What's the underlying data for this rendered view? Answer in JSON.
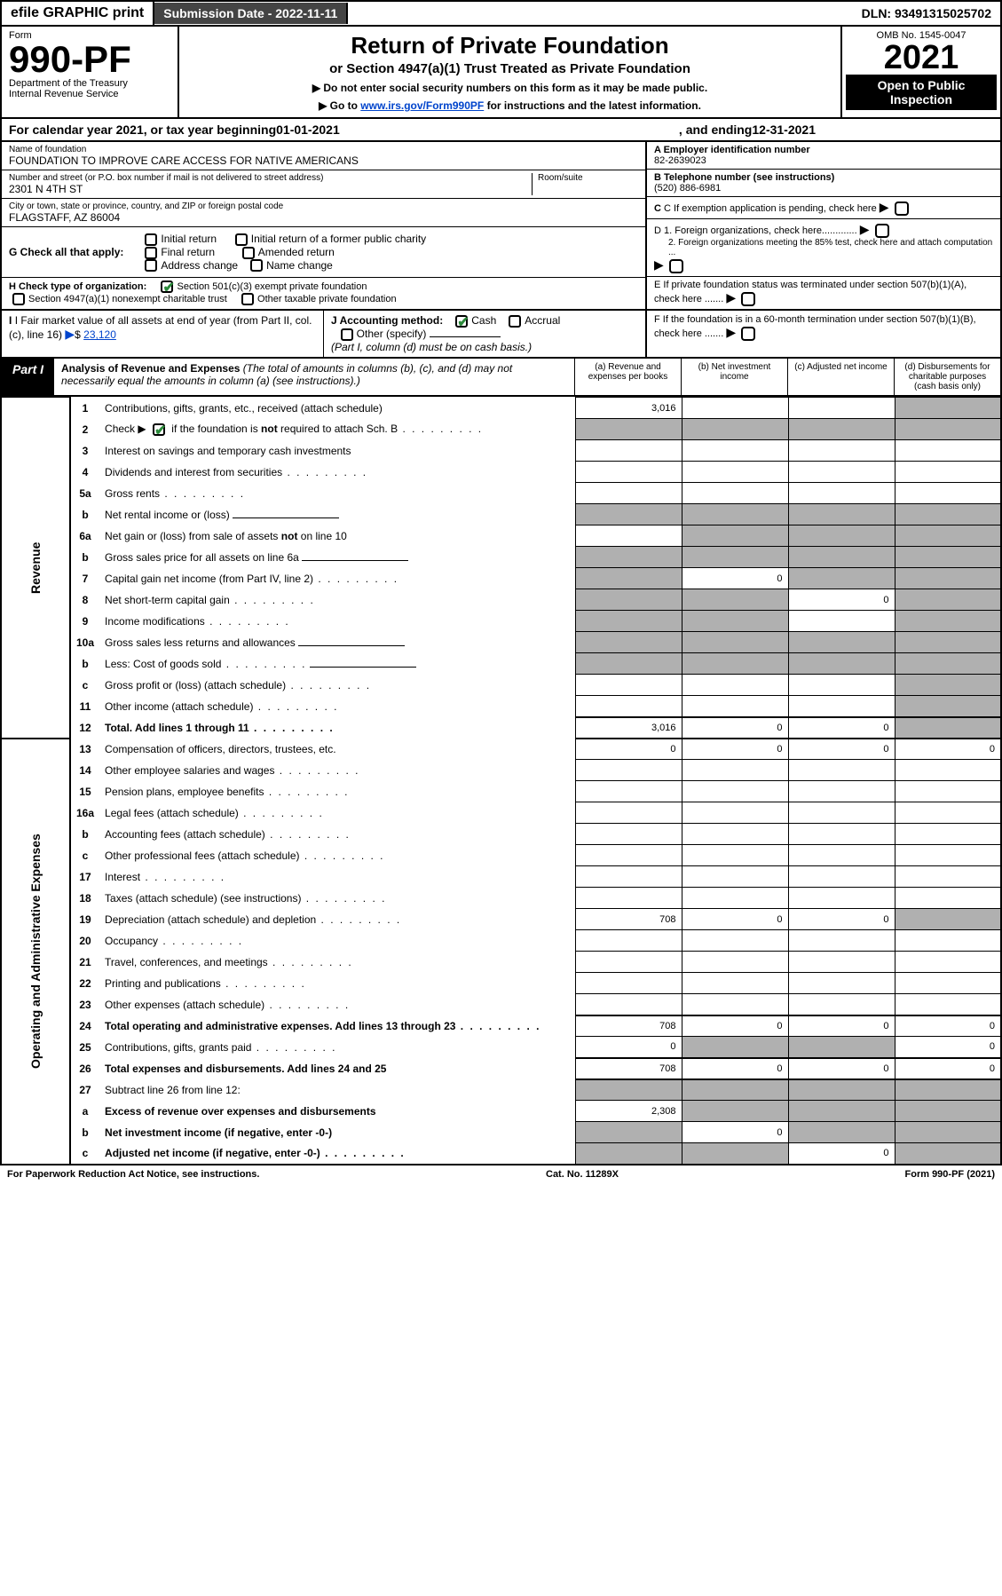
{
  "top": {
    "efile": "efile GRAPHIC print",
    "submission": "Submission Date - 2022-11-11",
    "dln": "DLN: 93491315025702"
  },
  "header": {
    "form_label": "Form",
    "form_number": "990-PF",
    "department": "Department of the Treasury",
    "irs": "Internal Revenue Service",
    "title": "Return of Private Foundation",
    "subtitle": "or Section 4947(a)(1) Trust Treated as Private Foundation",
    "instr1": "▶ Do not enter social security numbers on this form as it may be made public.",
    "instr2_pre": "▶ Go to ",
    "instr2_link": "www.irs.gov/Form990PF",
    "instr2_post": " for instructions and the latest information.",
    "omb": "OMB No. 1545-0047",
    "year": "2021",
    "open": "Open to Public Inspection"
  },
  "calendar": {
    "pre": "For calendar year 2021, or tax year beginning ",
    "begin": "01-01-2021",
    "mid": ", and ending ",
    "end": "12-31-2021"
  },
  "foundation": {
    "name_label": "Name of foundation",
    "name": "FOUNDATION TO IMPROVE CARE ACCESS FOR NATIVE AMERICANS",
    "addr_label": "Number and street (or P.O. box number if mail is not delivered to street address)",
    "addr": "2301 N 4TH ST",
    "room_label": "Room/suite",
    "city_label": "City or town, state or province, country, and ZIP or foreign postal code",
    "city": "FLAGSTAFF, AZ  86004",
    "ein_label": "A Employer identification number",
    "ein": "82-2639023",
    "phone_label": "B Telephone number (see instructions)",
    "phone": "(520) 886-6981",
    "c_label": "C If exemption application is pending, check here",
    "d1": "D 1. Foreign organizations, check here.............",
    "d2": "2. Foreign organizations meeting the 85% test, check here and attach computation ...",
    "e": "E  If private foundation status was terminated under section 507(b)(1)(A), check here .......",
    "f": "F  If the foundation is in a 60-month termination under section 507(b)(1)(B), check here ......."
  },
  "g": {
    "label": "G Check all that apply:",
    "initial": "Initial return",
    "initial_former": "Initial return of a former public charity",
    "final": "Final return",
    "amended": "Amended return",
    "address": "Address change",
    "name_change": "Name change"
  },
  "h": {
    "label": "H Check type of organization:",
    "opt1": "Section 501(c)(3) exempt private foundation",
    "opt2": "Section 4947(a)(1) nonexempt charitable trust",
    "opt3": "Other taxable private foundation"
  },
  "i": {
    "label": "I Fair market value of all assets at end of year (from Part II, col. (c), line 16)",
    "value": "23,120"
  },
  "j": {
    "label": "J Accounting method:",
    "cash": "Cash",
    "accrual": "Accrual",
    "other": "Other (specify)",
    "note": "(Part I, column (d) must be on cash basis.)"
  },
  "part1": {
    "label": "Part I",
    "title": "Analysis of Revenue and Expenses",
    "note": "(The total of amounts in columns (b), (c), and (d) may not necessarily equal the amounts in column (a) (see instructions).)",
    "cols": {
      "a": "(a)  Revenue and expenses per books",
      "b": "(b)  Net investment income",
      "c": "(c)  Adjusted net income",
      "d": "(d)  Disbursements for charitable purposes (cash basis only)"
    }
  },
  "sides": {
    "revenue": "Revenue",
    "expenses": "Operating and Administrative Expenses"
  },
  "rows": [
    {
      "n": "1",
      "desc": "Contributions, gifts, grants, etc., received (attach schedule)",
      "a": "3,016",
      "d_shade": true
    },
    {
      "n": "2",
      "desc": "Check ▶ ☑ if the foundation is not required to attach Sch. B",
      "all_shade": true,
      "dots": true
    },
    {
      "n": "3",
      "desc": "Interest on savings and temporary cash investments"
    },
    {
      "n": "4",
      "desc": "Dividends and interest from securities",
      "dots": true
    },
    {
      "n": "5a",
      "desc": "Gross rents",
      "dots": true
    },
    {
      "n": "b",
      "desc": "Net rental income or (loss)",
      "inline_blank": true,
      "all_shade": true
    },
    {
      "n": "6a",
      "desc": "Net gain or (loss) from sale of assets not on line 10",
      "bcd_shade": true
    },
    {
      "n": "b",
      "desc": "Gross sales price for all assets on line 6a",
      "inline_blank": true,
      "all_shade": true
    },
    {
      "n": "7",
      "desc": "Capital gain net income (from Part IV, line 2)",
      "dots": true,
      "a_shade": true,
      "b": "0",
      "cd_shade": true
    },
    {
      "n": "8",
      "desc": "Net short-term capital gain",
      "dots": true,
      "ab_shade": true,
      "c": "0",
      "d_shade": true
    },
    {
      "n": "9",
      "desc": "Income modifications",
      "dots": true,
      "ab_shade": true,
      "d_shade": true
    },
    {
      "n": "10a",
      "desc": "Gross sales less returns and allowances",
      "inline_blank": true,
      "all_shade": true
    },
    {
      "n": "b",
      "desc": "Less: Cost of goods sold",
      "dots": true,
      "inline_blank": true,
      "all_shade": true
    },
    {
      "n": "c",
      "desc": "Gross profit or (loss) (attach schedule)",
      "dots": true,
      "d_shade": true
    },
    {
      "n": "11",
      "desc": "Other income (attach schedule)",
      "dots": true,
      "d_shade": true
    },
    {
      "n": "12",
      "desc": "Total. Add lines 1 through 11",
      "dots": true,
      "bold": true,
      "a": "3,016",
      "b": "0",
      "c": "0",
      "d_shade": true
    },
    {
      "n": "13",
      "desc": "Compensation of officers, directors, trustees, etc.",
      "a": "0",
      "b": "0",
      "c": "0",
      "d": "0",
      "section": "expenses"
    },
    {
      "n": "14",
      "desc": "Other employee salaries and wages",
      "dots": true
    },
    {
      "n": "15",
      "desc": "Pension plans, employee benefits",
      "dots": true
    },
    {
      "n": "16a",
      "desc": "Legal fees (attach schedule)",
      "dots": true
    },
    {
      "n": "b",
      "desc": "Accounting fees (attach schedule)",
      "dots": true
    },
    {
      "n": "c",
      "desc": "Other professional fees (attach schedule)",
      "dots": true
    },
    {
      "n": "17",
      "desc": "Interest",
      "dots": true
    },
    {
      "n": "18",
      "desc": "Taxes (attach schedule) (see instructions)",
      "dots": true
    },
    {
      "n": "19",
      "desc": "Depreciation (attach schedule) and depletion",
      "dots": true,
      "a": "708",
      "b": "0",
      "c": "0",
      "d_shade": true
    },
    {
      "n": "20",
      "desc": "Occupancy",
      "dots": true
    },
    {
      "n": "21",
      "desc": "Travel, conferences, and meetings",
      "dots": true
    },
    {
      "n": "22",
      "desc": "Printing and publications",
      "dots": true
    },
    {
      "n": "23",
      "desc": "Other expenses (attach schedule)",
      "dots": true
    },
    {
      "n": "24",
      "desc": "Total operating and administrative expenses. Add lines 13 through 23",
      "dots": true,
      "bold": true,
      "a": "708",
      "b": "0",
      "c": "0",
      "d": "0"
    },
    {
      "n": "25",
      "desc": "Contributions, gifts, grants paid",
      "dots": true,
      "a": "0",
      "bc_shade": true,
      "d": "0"
    },
    {
      "n": "26",
      "desc": "Total expenses and disbursements. Add lines 24 and 25",
      "bold": true,
      "a": "708",
      "b": "0",
      "c": "0",
      "d": "0"
    },
    {
      "n": "27",
      "desc": "Subtract line 26 from line 12:",
      "bcd_shade": true,
      "a_shade": true
    },
    {
      "n": "a",
      "desc": "Excess of revenue over expenses and disbursements",
      "bold": true,
      "a": "2,308",
      "bcd_shade": true
    },
    {
      "n": "b",
      "desc": "Net investment income (if negative, enter -0-)",
      "bold": true,
      "a_shade": true,
      "b": "0",
      "cd_shade": true
    },
    {
      "n": "c",
      "desc": "Adjusted net income (if negative, enter -0-)",
      "bold": true,
      "dots": true,
      "ab_shade": true,
      "c": "0",
      "d_shade": true
    }
  ],
  "footer": {
    "left": "For Paperwork Reduction Act Notice, see instructions.",
    "center": "Cat. No. 11289X",
    "right": "Form 990-PF (2021)"
  },
  "colors": {
    "shaded": "#b0b0b0",
    "link": "#0044cc",
    "check": "#2a8a3a"
  }
}
